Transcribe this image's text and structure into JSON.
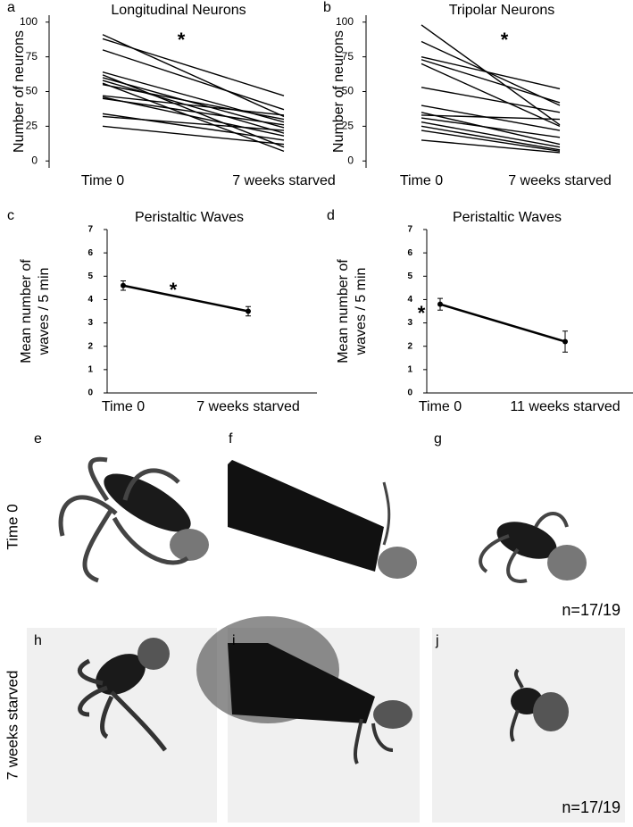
{
  "chart_data": [
    {
      "type": "line",
      "title": "Longitudinal Neurons",
      "ylabel": [
        "Number of neurons"
      ],
      "annotation": "*",
      "categories": [
        "Time 0",
        "7 weeks starved"
      ],
      "ylim": [
        -5,
        105
      ],
      "yticks": [
        0,
        25,
        50,
        75,
        100
      ],
      "color": "#000000",
      "series": [
        {
          "values": [
            91,
            32
          ]
        },
        {
          "values": [
            88,
            47
          ]
        },
        {
          "values": [
            80,
            37
          ]
        },
        {
          "values": [
            64,
            28
          ]
        },
        {
          "values": [
            62,
            10
          ]
        },
        {
          "values": [
            60,
            24
          ]
        },
        {
          "values": [
            58,
            20
          ]
        },
        {
          "values": [
            56,
            7
          ]
        },
        {
          "values": [
            55,
            30
          ]
        },
        {
          "values": [
            47,
            33
          ]
        },
        {
          "values": [
            46,
            18
          ]
        },
        {
          "values": [
            45,
            26
          ]
        },
        {
          "values": [
            34,
            15
          ]
        },
        {
          "values": [
            32,
            22
          ]
        },
        {
          "values": [
            25,
            12
          ]
        }
      ]
    },
    {
      "type": "line",
      "title": "Tripolar Neurons",
      "ylabel": [
        "Number of neurons"
      ],
      "annotation": "*",
      "categories": [
        "Time 0",
        "7 weeks starved"
      ],
      "ylim": [
        -5,
        105
      ],
      "yticks": [
        0,
        25,
        50,
        75,
        100
      ],
      "color": "#000000",
      "series": [
        {
          "values": [
            98,
            26
          ]
        },
        {
          "values": [
            86,
            40
          ]
        },
        {
          "values": [
            75,
            52
          ]
        },
        {
          "values": [
            73,
            42
          ]
        },
        {
          "values": [
            70,
            25
          ]
        },
        {
          "values": [
            53,
            35
          ]
        },
        {
          "values": [
            40,
            22
          ]
        },
        {
          "values": [
            35,
            12
          ]
        },
        {
          "values": [
            33,
            30
          ]
        },
        {
          "values": [
            31,
            17
          ]
        },
        {
          "values": [
            28,
            10
          ]
        },
        {
          "values": [
            25,
            8
          ]
        },
        {
          "values": [
            22,
            7
          ]
        },
        {
          "values": [
            15,
            6
          ]
        }
      ]
    },
    {
      "type": "errorline",
      "title": "Peristaltic Waves",
      "ylabel": [
        "Mean number of",
        "waves / 5 min"
      ],
      "annotation": "*",
      "categories": [
        "Time 0",
        "7 weeks starved"
      ],
      "values": [
        4.6,
        3.5
      ],
      "errors": [
        0.2,
        0.2
      ],
      "color": "#000000",
      "ylim": [
        0,
        7
      ],
      "yticks": [
        0,
        1,
        2,
        3,
        4,
        5,
        6,
        7
      ]
    },
    {
      "type": "errorline",
      "title": "Peristaltic Waves",
      "ylabel": [
        "Mean number of",
        "waves / 5 min"
      ],
      "annotation": "*",
      "categories": [
        "Time 0",
        "11 weeks starved"
      ],
      "values": [
        3.8,
        2.2
      ],
      "errors": [
        0.25,
        0.45
      ],
      "color": "#000000",
      "ylim": [
        0,
        7
      ],
      "yticks": [
        0,
        1,
        2,
        3,
        4,
        5,
        6,
        7
      ]
    }
  ],
  "figure": {
    "panel_labels": [
      "a",
      "b",
      "c",
      "d",
      "e",
      "f",
      "g",
      "h",
      "i",
      "j"
    ],
    "row_labels": [
      "Time 0",
      "7 weeks starved"
    ],
    "counts": [
      "n=17/19",
      "n=17/19"
    ]
  }
}
